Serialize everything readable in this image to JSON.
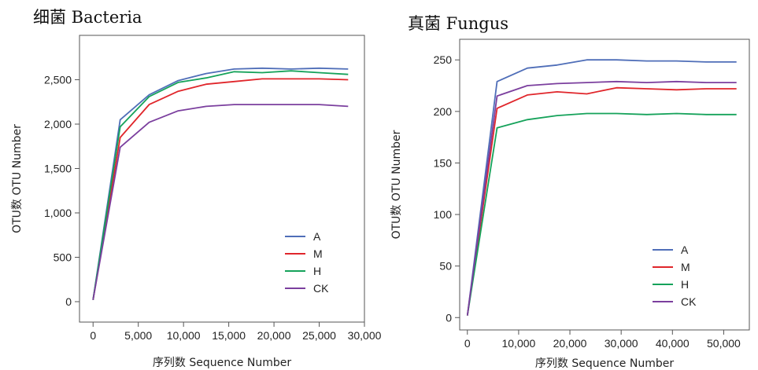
{
  "colors": {
    "A": "#4f6eb8",
    "M": "#e0262b",
    "H": "#15a25a",
    "CK": "#7b3f9e"
  },
  "chart_data": [
    {
      "type": "line",
      "title": "细菌  Bacteria",
      "xlabel": "序列数 Sequence Number",
      "ylabel": "OTU数 OTU Number",
      "xlim": [
        -1500,
        30000
      ],
      "ylim": [
        -230,
        3000
      ],
      "xticks": [
        0,
        5000,
        10000,
        15000,
        20000,
        25000,
        30000
      ],
      "xtick_labels": [
        "0",
        "5,000",
        "10,000",
        "15,000",
        "20,000",
        "25,000",
        "30,000"
      ],
      "yticks": [
        0,
        500,
        1000,
        1500,
        2000,
        2500
      ],
      "ytick_labels": [
        "0",
        "500",
        "1,000",
        "1,500",
        "2,000",
        "2,500"
      ],
      "legend_position": "lower-right",
      "grid": false,
      "series": [
        {
          "name": "A",
          "x": [
            0,
            3000,
            6200,
            9400,
            12500,
            15600,
            18700,
            21900,
            25000,
            28200
          ],
          "y": [
            20,
            2050,
            2330,
            2490,
            2570,
            2620,
            2630,
            2620,
            2630,
            2620
          ]
        },
        {
          "name": "M",
          "x": [
            0,
            3000,
            6200,
            9400,
            12500,
            15600,
            18700,
            21900,
            25000,
            28200
          ],
          "y": [
            20,
            1850,
            2220,
            2370,
            2450,
            2480,
            2510,
            2510,
            2510,
            2500
          ]
        },
        {
          "name": "H",
          "x": [
            0,
            3000,
            6200,
            9400,
            12500,
            15600,
            18700,
            21900,
            25000,
            28200
          ],
          "y": [
            20,
            1970,
            2310,
            2470,
            2520,
            2590,
            2580,
            2600,
            2580,
            2560
          ]
        },
        {
          "name": "CK",
          "x": [
            0,
            3000,
            6200,
            9400,
            12500,
            15600,
            18700,
            21900,
            25000,
            28200
          ],
          "y": [
            20,
            1740,
            2020,
            2150,
            2200,
            2220,
            2220,
            2220,
            2220,
            2200
          ]
        }
      ]
    },
    {
      "type": "line",
      "title": "真菌  Fungus",
      "xlabel": "序列数 Sequence Number",
      "ylabel": "OTU数 OTU Number",
      "xlim": [
        -1500,
        55000
      ],
      "ylim": [
        -12,
        270
      ],
      "xticks": [
        0,
        10000,
        20000,
        30000,
        40000,
        50000
      ],
      "xtick_labels": [
        "0",
        "10,000",
        "20,000",
        "30,000",
        "40,000",
        "50,000"
      ],
      "yticks": [
        0,
        50,
        100,
        150,
        200,
        250
      ],
      "ytick_labels": [
        "0",
        "50",
        "100",
        "150",
        "200",
        "250"
      ],
      "legend_position": "lower-right",
      "grid": false,
      "series": [
        {
          "name": "A",
          "x": [
            0,
            5800,
            11700,
            17500,
            23300,
            29100,
            35000,
            40800,
            46600,
            52500
          ],
          "y": [
            2,
            229,
            242,
            245,
            250,
            250,
            249,
            249,
            248,
            248
          ]
        },
        {
          "name": "M",
          "x": [
            0,
            5800,
            11700,
            17500,
            23300,
            29100,
            35000,
            40800,
            46600,
            52500
          ],
          "y": [
            2,
            203,
            216,
            219,
            217,
            223,
            222,
            221,
            222,
            222
          ]
        },
        {
          "name": "H",
          "x": [
            0,
            5800,
            11700,
            17500,
            23300,
            29100,
            35000,
            40800,
            46600,
            52500
          ],
          "y": [
            2,
            184,
            192,
            196,
            198,
            198,
            197,
            198,
            197,
            197
          ]
        },
        {
          "name": "CK",
          "x": [
            0,
            5800,
            11700,
            17500,
            23300,
            29100,
            35000,
            40800,
            46600,
            52500
          ],
          "y": [
            2,
            215,
            225,
            227,
            228,
            229,
            228,
            229,
            228,
            228
          ]
        }
      ]
    }
  ]
}
